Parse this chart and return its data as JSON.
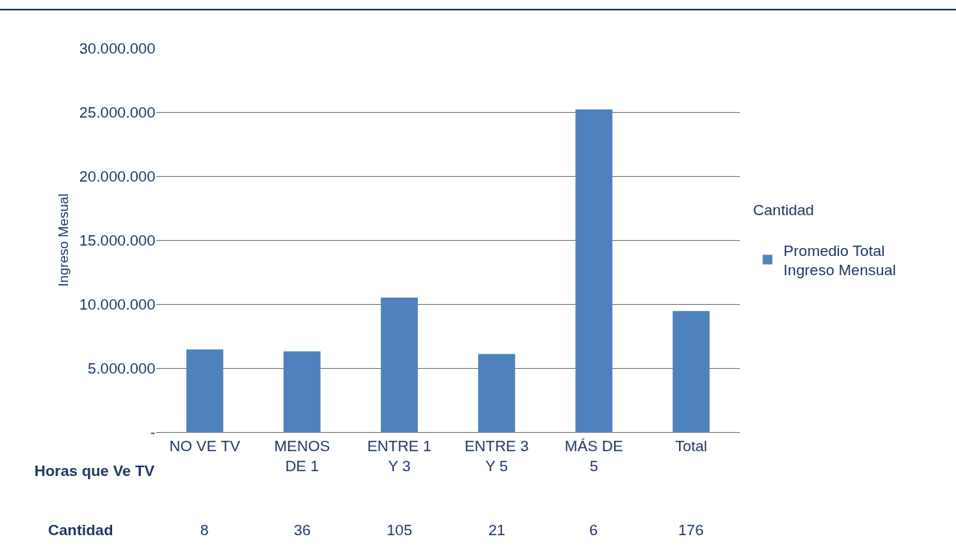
{
  "chart_data": {
    "type": "bar",
    "categories": [
      "NO VE TV",
      "MENOS\nDE 1",
      "ENTRE 1\nY 3",
      "ENTRE 3\nY 5",
      "MÁS DE\n5",
      "Total"
    ],
    "series": [
      {
        "name": "Promedio Total Ingreso Mensual",
        "color": "#4f81bd",
        "values": [
          6450000,
          6300000,
          10500000,
          6100000,
          25200000,
          9450000
        ]
      }
    ],
    "xlabel": "Horas que Ve TV",
    "ylabel": "Ingreso Mesual",
    "legend_title": "Cantidad",
    "ylim": [
      0,
      30000000
    ],
    "yticks": [
      {
        "value": 0,
        "label": "-"
      },
      {
        "value": 5000000,
        "label": "5.000.000"
      },
      {
        "value": 10000000,
        "label": "10.000.000"
      },
      {
        "value": 15000000,
        "label": "15.000.000"
      },
      {
        "value": 20000000,
        "label": "20.000.000"
      },
      {
        "value": 25000000,
        "label": "25.000.000"
      },
      {
        "value": 30000000,
        "label": "30.000.000"
      }
    ],
    "annotations": [
      "Cantidad",
      "8",
      "36",
      "105",
      "21",
      "6",
      "176"
    ],
    "grid": "y",
    "legend": "right"
  }
}
